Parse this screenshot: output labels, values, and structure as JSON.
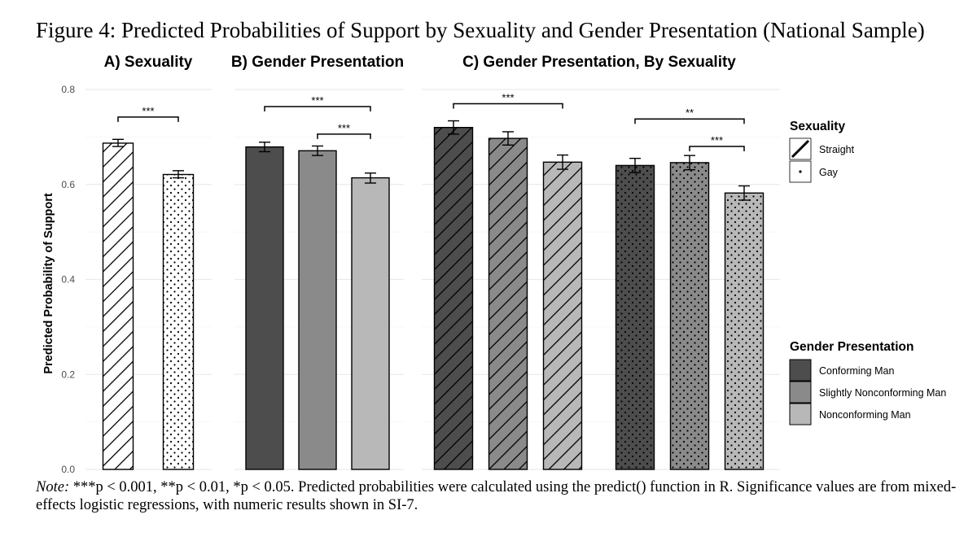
{
  "figure": {
    "title": "Figure 4:  Predicted Probabilities of Support by Sexuality and Gender Presentation (National Sample)",
    "note_label": "Note:",
    "note_text": " ***p < 0.001, **p < 0.01, *p < 0.05. Predicted probabilities were calculated using the predict() function in R. Significance values are from mixed-effects logistic regressions, with numeric results shown in SI-7."
  },
  "colors": {
    "conforming": "#4d4d4d",
    "slightly": "#8a8a8a",
    "nonconforming": "#b8b8b8",
    "white": "#ffffff",
    "grid": "#ebebeb"
  },
  "chart_data": {
    "type": "bar",
    "ylabel": "Predicted Probability of Support",
    "ylim": [
      0,
      0.8
    ],
    "yticks": [
      "0.0",
      "0.2",
      "0.4",
      "0.6",
      "0.8"
    ],
    "panels": [
      {
        "title": "A) Sexuality",
        "bars": [
          {
            "label": "Straight",
            "value": 0.687,
            "ci": [
              0.68,
              0.695
            ],
            "fill": "white",
            "pattern": "stripe"
          },
          {
            "label": "Gay",
            "value": 0.621,
            "ci": [
              0.614,
              0.629
            ],
            "fill": "white",
            "pattern": "dot"
          }
        ],
        "sig": [
          {
            "from": 0,
            "to": 1,
            "label": "***",
            "y": 0.742
          }
        ]
      },
      {
        "title": "B) Gender Presentation",
        "bars": [
          {
            "label": "Conforming Man",
            "value": 0.679,
            "ci": [
              0.669,
              0.689
            ],
            "fill": "conforming",
            "pattern": "none"
          },
          {
            "label": "Slightly Nonconforming Man",
            "value": 0.671,
            "ci": [
              0.661,
              0.681
            ],
            "fill": "slightly",
            "pattern": "none"
          },
          {
            "label": "Nonconforming Man",
            "value": 0.614,
            "ci": [
              0.603,
              0.624
            ],
            "fill": "nonconforming",
            "pattern": "none"
          }
        ],
        "sig": [
          {
            "from": 0,
            "to": 2,
            "label": "***",
            "y": 0.764
          },
          {
            "from": 1,
            "to": 2,
            "label": "***",
            "y": 0.706
          }
        ]
      },
      {
        "title": "C) Gender Presentation, By Sexuality",
        "bars": [
          {
            "label": "Conforming Man",
            "sexuality": "Straight",
            "value": 0.72,
            "ci": [
              0.706,
              0.734
            ],
            "fill": "conforming",
            "pattern": "stripe"
          },
          {
            "label": "Slightly Nonconforming Man",
            "sexuality": "Straight",
            "value": 0.697,
            "ci": [
              0.683,
              0.711
            ],
            "fill": "slightly",
            "pattern": "stripe"
          },
          {
            "label": "Nonconforming Man",
            "sexuality": "Straight",
            "value": 0.647,
            "ci": [
              0.632,
              0.662
            ],
            "fill": "nonconforming",
            "pattern": "stripe"
          },
          {
            "label": "Conforming Man",
            "sexuality": "Gay",
            "value": 0.64,
            "ci": [
              0.625,
              0.655
            ],
            "fill": "conforming",
            "pattern": "dot"
          },
          {
            "label": "Slightly Nonconforming Man",
            "sexuality": "Gay",
            "value": 0.646,
            "ci": [
              0.631,
              0.661
            ],
            "fill": "slightly",
            "pattern": "dot"
          },
          {
            "label": "Nonconforming Man",
            "sexuality": "Gay",
            "value": 0.582,
            "ci": [
              0.567,
              0.597
            ],
            "fill": "nonconforming",
            "pattern": "dot"
          }
        ],
        "sig": [
          {
            "from": 0,
            "to": 2,
            "label": "***",
            "y": 0.77
          },
          {
            "from": 3,
            "to": 5,
            "label": "**",
            "y": 0.738
          },
          {
            "from": 4,
            "to": 5,
            "label": "***",
            "y": 0.68
          }
        ]
      }
    ],
    "legends": [
      {
        "title": "Sexuality",
        "items": [
          {
            "label": "Straight",
            "pattern": "stripe"
          },
          {
            "label": "Gay",
            "pattern": "dot"
          }
        ]
      },
      {
        "title": "Gender Presentation",
        "items": [
          {
            "label": "Conforming Man",
            "fill": "conforming"
          },
          {
            "label": "Slightly Nonconforming Man",
            "fill": "slightly"
          },
          {
            "label": "Nonconforming Man",
            "fill": "nonconforming"
          }
        ]
      }
    ]
  }
}
